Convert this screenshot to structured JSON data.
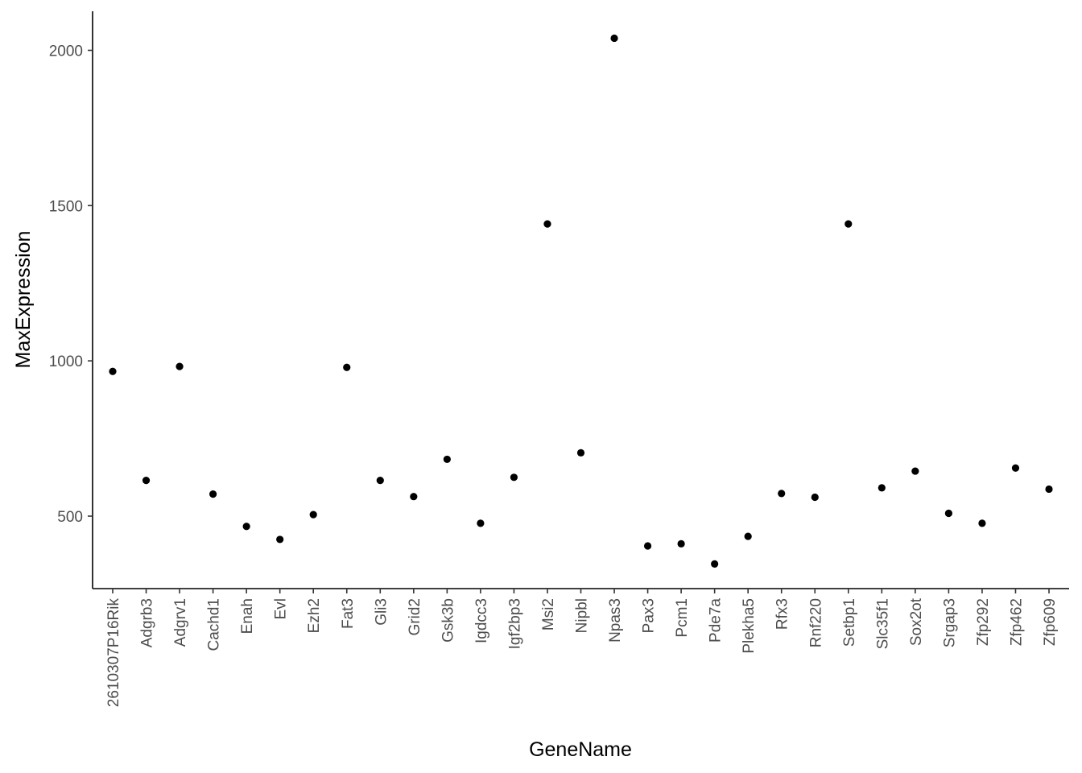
{
  "chart_data": {
    "type": "scatter",
    "title": "",
    "xlabel": "GeneName",
    "ylabel": "MaxExpression",
    "categories": [
      "2610307P16Rik",
      "Adgrb3",
      "Adgrv1",
      "Cachd1",
      "Enah",
      "Evl",
      "Ezh2",
      "Fat3",
      "Gli3",
      "Grid2",
      "Gsk3b",
      "Igdcc3",
      "Igf2bp3",
      "Msi2",
      "Nipbl",
      "Npas3",
      "Pax3",
      "Pcm1",
      "Pde7a",
      "Plekha5",
      "Rfx3",
      "Rnf220",
      "Setbp1",
      "Slc35f1",
      "Sox2ot",
      "Srgap3",
      "Zfp292",
      "Zfp462",
      "Zfp609"
    ],
    "values": [
      966,
      615,
      982,
      571,
      467,
      425,
      505,
      979,
      615,
      563,
      683,
      477,
      625,
      1441,
      704,
      2039,
      404,
      411,
      346,
      435,
      573,
      561,
      1441,
      591,
      645,
      509,
      477,
      655,
      587
    ],
    "yticks": [
      500,
      1000,
      1500,
      2000
    ],
    "ylim": [
      265,
      2125
    ],
    "grid": false,
    "legend": "none",
    "point_color": "#000000"
  }
}
